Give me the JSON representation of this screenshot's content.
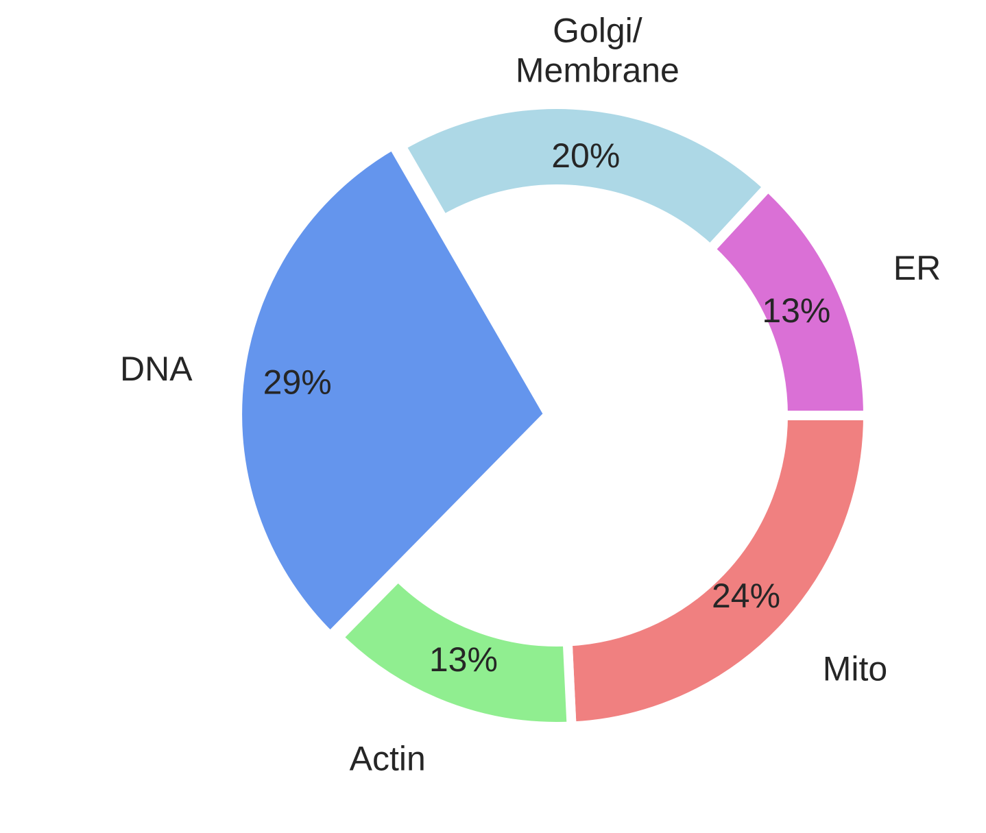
{
  "chart_data": {
    "type": "pie",
    "title": "",
    "donut": true,
    "categories": [
      "Mito",
      "Actin",
      "DNA",
      "Golgi/\nMembrane",
      "ER"
    ],
    "values": [
      24,
      13,
      29,
      20,
      13
    ],
    "percent_labels": [
      "24%",
      "13%",
      "29%",
      "20%",
      "13%"
    ],
    "colors": [
      "#f08080",
      "#90ee90",
      "#6495ed",
      "#add8e6",
      "#da70d6"
    ],
    "start_angle": 0,
    "direction": "clockwise",
    "exploded": [
      "DNA"
    ],
    "legend": "none"
  }
}
